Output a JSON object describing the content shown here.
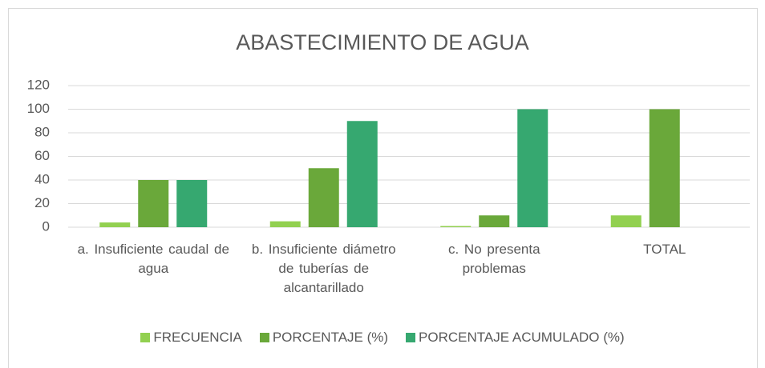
{
  "chart_data": {
    "type": "bar",
    "title": "ABASTECIMIENTO DE AGUA",
    "categories": [
      "a.      Insuficiente caudal de agua",
      "b.      Insuficiente diámetro de tuberías de alcantarillado",
      "c.      No presenta problemas",
      "TOTAL"
    ],
    "series": [
      {
        "name": "FRECUENCIA",
        "color": "#92d050",
        "values": [
          4,
          5,
          1,
          10
        ]
      },
      {
        "name": "PORCENTAJE (%)",
        "color": "#6aa83a",
        "values": [
          40,
          50,
          10,
          100
        ]
      },
      {
        "name": "PORCENTAJE ACUMULADO (%)",
        "color": "#36a870",
        "values": [
          40,
          90,
          100,
          null
        ]
      }
    ],
    "ylim": [
      0,
      120
    ],
    "yticks": [
      0,
      20,
      40,
      60,
      80,
      100,
      120
    ],
    "grid": true,
    "legend": "bottom"
  }
}
